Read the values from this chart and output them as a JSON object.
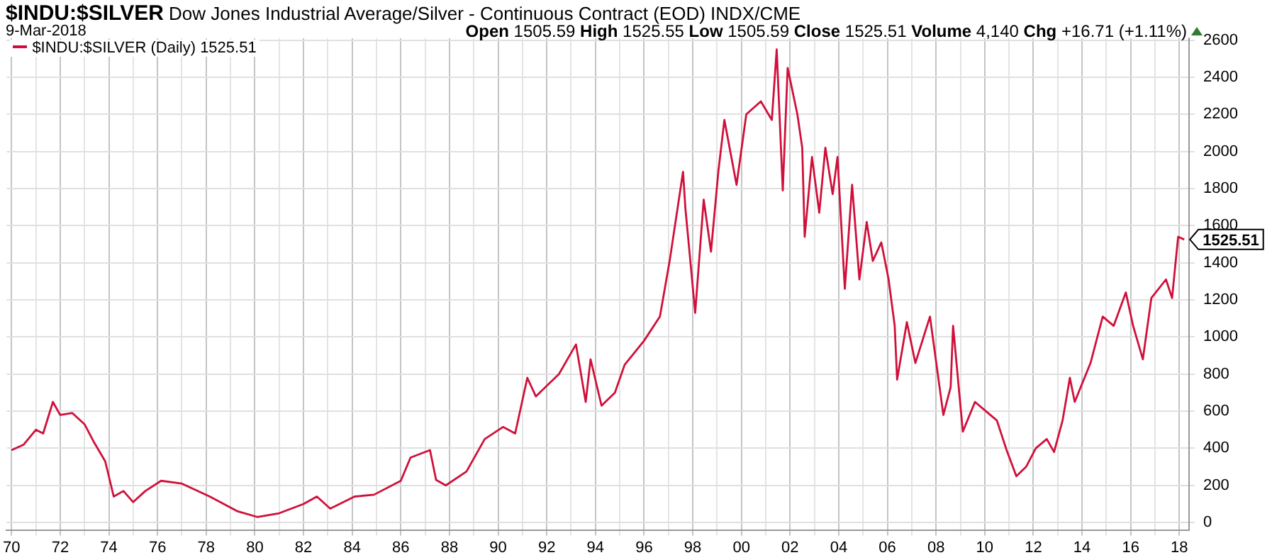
{
  "chart_data": {
    "type": "line",
    "title": "$INDU:$SILVER",
    "subtitle": "Dow Jones Industrial Average/Silver - Continuous Contract (EOD) INDX/CME",
    "annotations": [
      "9-Mar-2018",
      "Open 1505.59 High 1525.55 Low 1505.59 Close 1525.51 Volume 4,140 Chg +16.71 (+1.11%)",
      {
        "text": "1525.51",
        "x": 2018.2,
        "y": 1525.51
      }
    ],
    "series": [
      {
        "name": "$INDU:$SILVER (Daily) 1525.51",
        "color": "#d0103a",
        "x": [
          1970.0,
          1970.5,
          1971.0,
          1971.3,
          1971.7,
          1972.0,
          1972.5,
          1973.0,
          1973.4,
          1973.85,
          1974.2,
          1974.6,
          1975.0,
          1975.5,
          1976.15,
          1977.0,
          1978.15,
          1979.3,
          1980.1,
          1981.0,
          1982.0,
          1982.55,
          1983.1,
          1984.1,
          1984.9,
          1986.0,
          1986.4,
          1987.2,
          1987.45,
          1987.85,
          1988.7,
          1989.45,
          1990.2,
          1990.7,
          1991.2,
          1991.55,
          1992.5,
          1993.2,
          1993.6,
          1993.8,
          1994.25,
          1994.8,
          1995.2,
          1996.0,
          1996.65,
          1997.05,
          1997.6,
          1997.7,
          1998.1,
          1998.45,
          1998.75,
          1999.05,
          1999.3,
          1999.8,
          2000.2,
          2000.8,
          2001.25,
          2001.45,
          2001.7,
          2001.9,
          2002.3,
          2002.5,
          2002.6,
          2002.9,
          2003.2,
          2003.45,
          2003.75,
          2003.95,
          2004.25,
          2004.55,
          2004.85,
          2005.15,
          2005.4,
          2005.75,
          2006.05,
          2006.3,
          2006.4,
          2006.8,
          2007.15,
          2007.75,
          2008.3,
          2008.6,
          2008.7,
          2009.1,
          2009.6,
          2010.05,
          2010.5,
          2010.9,
          2011.3,
          2011.7,
          2012.1,
          2012.55,
          2012.85,
          2013.2,
          2013.5,
          2013.7,
          2014.35,
          2014.85,
          2015.3,
          2015.8,
          2016.1,
          2016.5,
          2016.85,
          2017.45,
          2017.7,
          2017.95,
          2018.2
        ],
        "values": [
          390,
          420,
          500,
          480,
          650,
          580,
          590,
          530,
          430,
          330,
          140,
          170,
          110,
          170,
          225,
          210,
          140,
          60,
          30,
          50,
          100,
          140,
          75,
          140,
          150,
          225,
          350,
          390,
          230,
          200,
          275,
          450,
          515,
          480,
          780,
          680,
          800,
          960,
          650,
          880,
          630,
          700,
          850,
          980,
          1110,
          1410,
          1890,
          1690,
          1130,
          1740,
          1460,
          1890,
          2170,
          1820,
          2200,
          2270,
          2170,
          2550,
          1790,
          2450,
          2200,
          2020,
          1540,
          1970,
          1670,
          2020,
          1770,
          1970,
          1260,
          1820,
          1310,
          1620,
          1410,
          1510,
          1310,
          1060,
          770,
          1080,
          860,
          1110,
          580,
          730,
          1060,
          490,
          650,
          600,
          550,
          390,
          250,
          300,
          400,
          450,
          380,
          550,
          780,
          650,
          860,
          1110,
          1060,
          1240,
          1060,
          880,
          1210,
          1310,
          1210,
          1540,
          1525.51
        ]
      }
    ],
    "xlim": [
      1969.8,
      2018.4
    ],
    "xticks": [
      {
        "value": 1970,
        "label": "70"
      },
      {
        "value": 1971,
        "label": null
      },
      {
        "value": 1972,
        "label": "72"
      },
      {
        "value": 1973,
        "label": null
      },
      {
        "value": 1974,
        "label": "74"
      },
      {
        "value": 1975,
        "label": null
      },
      {
        "value": 1976,
        "label": "76"
      },
      {
        "value": 1977,
        "label": null
      },
      {
        "value": 1978,
        "label": "78"
      },
      {
        "value": 1979,
        "label": null
      },
      {
        "value": 1980,
        "label": "80"
      },
      {
        "value": 1981,
        "label": null
      },
      {
        "value": 1982,
        "label": "82"
      },
      {
        "value": 1983,
        "label": null
      },
      {
        "value": 1984,
        "label": "84"
      },
      {
        "value": 1985,
        "label": null
      },
      {
        "value": 1986,
        "label": "86"
      },
      {
        "value": 1987,
        "label": null
      },
      {
        "value": 1988,
        "label": "88"
      },
      {
        "value": 1989,
        "label": null
      },
      {
        "value": 1990,
        "label": "90"
      },
      {
        "value": 1991,
        "label": null
      },
      {
        "value": 1992,
        "label": "92"
      },
      {
        "value": 1993,
        "label": null
      },
      {
        "value": 1994,
        "label": "94"
      },
      {
        "value": 1995,
        "label": null
      },
      {
        "value": 1996,
        "label": "96"
      },
      {
        "value": 1997,
        "label": null
      },
      {
        "value": 1998,
        "label": "98"
      },
      {
        "value": 1999,
        "label": null
      },
      {
        "value": 2000,
        "label": "00"
      },
      {
        "value": 2001,
        "label": null
      },
      {
        "value": 2002,
        "label": "02"
      },
      {
        "value": 2003,
        "label": null
      },
      {
        "value": 2004,
        "label": "04"
      },
      {
        "value": 2005,
        "label": null
      },
      {
        "value": 2006,
        "label": "06"
      },
      {
        "value": 2007,
        "label": null
      },
      {
        "value": 2008,
        "label": "08"
      },
      {
        "value": 2009,
        "label": null
      },
      {
        "value": 2010,
        "label": "10"
      },
      {
        "value": 2011,
        "label": null
      },
      {
        "value": 2012,
        "label": "12"
      },
      {
        "value": 2013,
        "label": null
      },
      {
        "value": 2014,
        "label": "14"
      },
      {
        "value": 2015,
        "label": null
      },
      {
        "value": 2016,
        "label": "16"
      },
      {
        "value": 2017,
        "label": null
      },
      {
        "value": 2018,
        "label": "18"
      }
    ],
    "ylim": [
      -40,
      2610
    ],
    "yticks": [
      0,
      200,
      400,
      600,
      800,
      1000,
      1200,
      1400,
      1600,
      1800,
      2000,
      2200,
      2400,
      2600
    ],
    "grid": true,
    "legend": "top left",
    "marker": "none",
    "line_style": "solid"
  }
}
